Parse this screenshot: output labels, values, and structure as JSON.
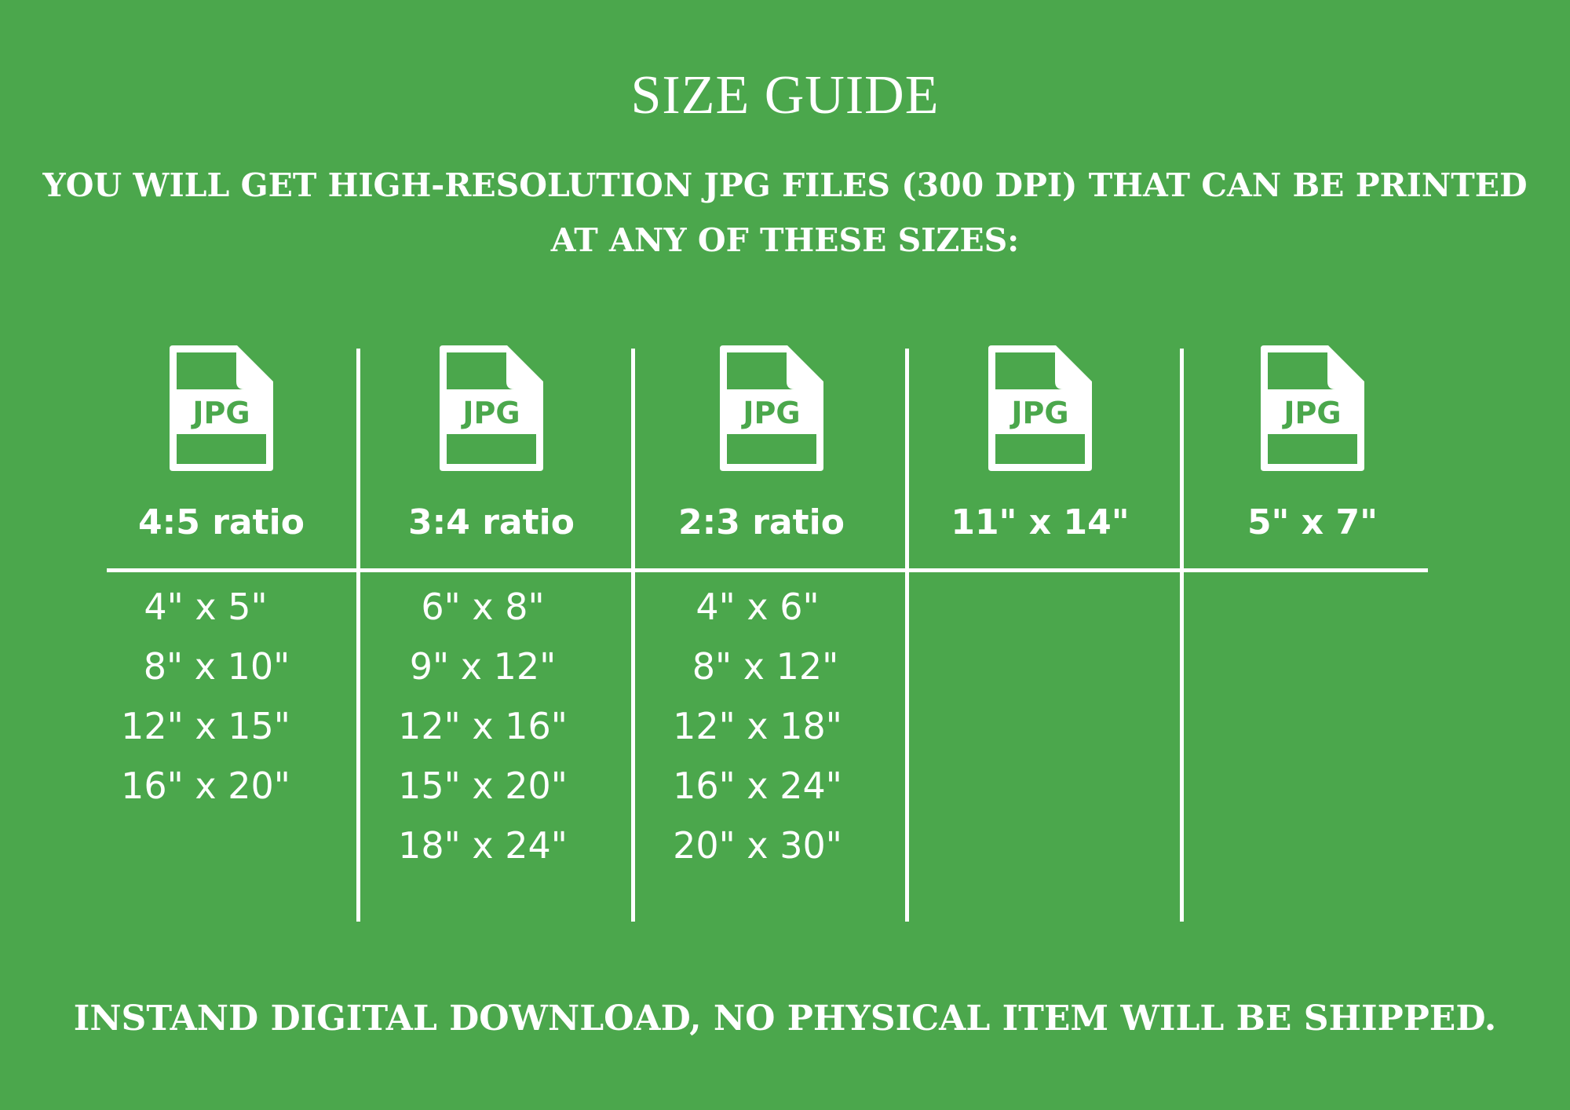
{
  "title": "SIZE GUIDE",
  "subtitle_lines": [
    "YOU WILL GET HIGH-RESOLUTION JPG FILES (300 DPI) THAT CAN BE PRINTED",
    "AT ANY OF THESE SIZES:"
  ],
  "colors": {
    "background": "#4ba74c",
    "foreground": "#ffffff"
  },
  "icon": {
    "name": "jpg-file-icon",
    "label": "JPG"
  },
  "columns": [
    {
      "header": "4:5 ratio",
      "sizes": [
        "4\" x 5\"",
        "8\" x 10\"",
        "12\" x 15\"",
        "16\" x 20\""
      ]
    },
    {
      "header": "3:4 ratio",
      "sizes": [
        "6\" x 8\"",
        "9\" x 12\"",
        "12\" x 16\"",
        "15\" x 20\"",
        "18\" x 24\""
      ]
    },
    {
      "header": "2:3 ratio",
      "sizes": [
        "4\" x 6\"",
        "8\" x 12\"",
        "12\" x 18\"",
        "16\" x 24\"",
        "20\" x 30\""
      ]
    },
    {
      "header": "11\" x 14\"",
      "sizes": []
    },
    {
      "header": "5\" x 7\"",
      "sizes": []
    }
  ],
  "footer": "INSTAND DIGITAL DOWNLOAD, NO PHYSICAL ITEM WILL BE SHIPPED."
}
